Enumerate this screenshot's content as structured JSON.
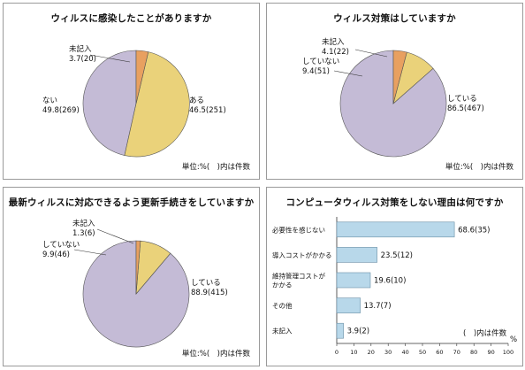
{
  "chart_data": [
    {
      "type": "pie",
      "title": "ウィルスに感染したことがありますか",
      "labels": [
        "ある",
        "ない",
        "未記入"
      ],
      "values": [
        46.5,
        49.8,
        3.7
      ],
      "counts": [
        251,
        269,
        20
      ],
      "value_text": [
        "46.5(251)",
        "49.8(269)",
        "3.7(20)"
      ],
      "colors": [
        "#c4bbd6",
        "#ead27a",
        "#e8a060"
      ],
      "note": "単位:%(　)内は件数"
    },
    {
      "type": "pie",
      "title": "ウィルス対策はしていますか",
      "labels": [
        "している",
        "していない",
        "未記入"
      ],
      "values": [
        86.5,
        9.4,
        4.1
      ],
      "counts": [
        467,
        51,
        22
      ],
      "value_text": [
        "86.5(467)",
        "9.4(51)",
        "4.1(22)"
      ],
      "colors": [
        "#c4bbd6",
        "#ead27a",
        "#e8a060"
      ],
      "note": "単位:%(　)内は件数"
    },
    {
      "type": "pie",
      "title": "最新ウィルスに対応できるよう更新手続きをしていますか",
      "labels": [
        "している",
        "していない",
        "未記入"
      ],
      "values": [
        88.9,
        9.9,
        1.3
      ],
      "counts": [
        415,
        46,
        6
      ],
      "value_text": [
        "88.9(415)",
        "9.9(46)",
        "1.3(6)"
      ],
      "colors": [
        "#c4bbd6",
        "#ead27a",
        "#e8a060"
      ],
      "note": "単位:%(　)内は件数"
    },
    {
      "type": "bar",
      "orientation": "horizontal",
      "title": "コンピュータウィルス対策をしない理由は何ですか",
      "categories": [
        "必要性を感じない",
        "導入コストがかかる",
        "維持管理コストがかかる",
        "その他",
        "未記入"
      ],
      "category_lines": [
        [
          "必要性を感じない"
        ],
        [
          "導入コストがかかる"
        ],
        [
          "維持管理コストが",
          "かかる"
        ],
        [
          "その他"
        ],
        [
          "未記入"
        ]
      ],
      "values": [
        68.6,
        23.5,
        19.6,
        13.7,
        3.9
      ],
      "counts": [
        35,
        12,
        10,
        7,
        2
      ],
      "value_text": [
        "68.6(35)",
        "23.5(12)",
        "19.6(10)",
        "13.7(7)",
        "3.9(2)"
      ],
      "bar_color": "#b8d8ea",
      "xlim": [
        0,
        100
      ],
      "xticks": [
        "0",
        "10",
        "20",
        "30",
        "40",
        "50",
        "60",
        "70",
        "80",
        "90",
        "100"
      ],
      "xunit": "%",
      "note": "(　)内は件数"
    }
  ]
}
